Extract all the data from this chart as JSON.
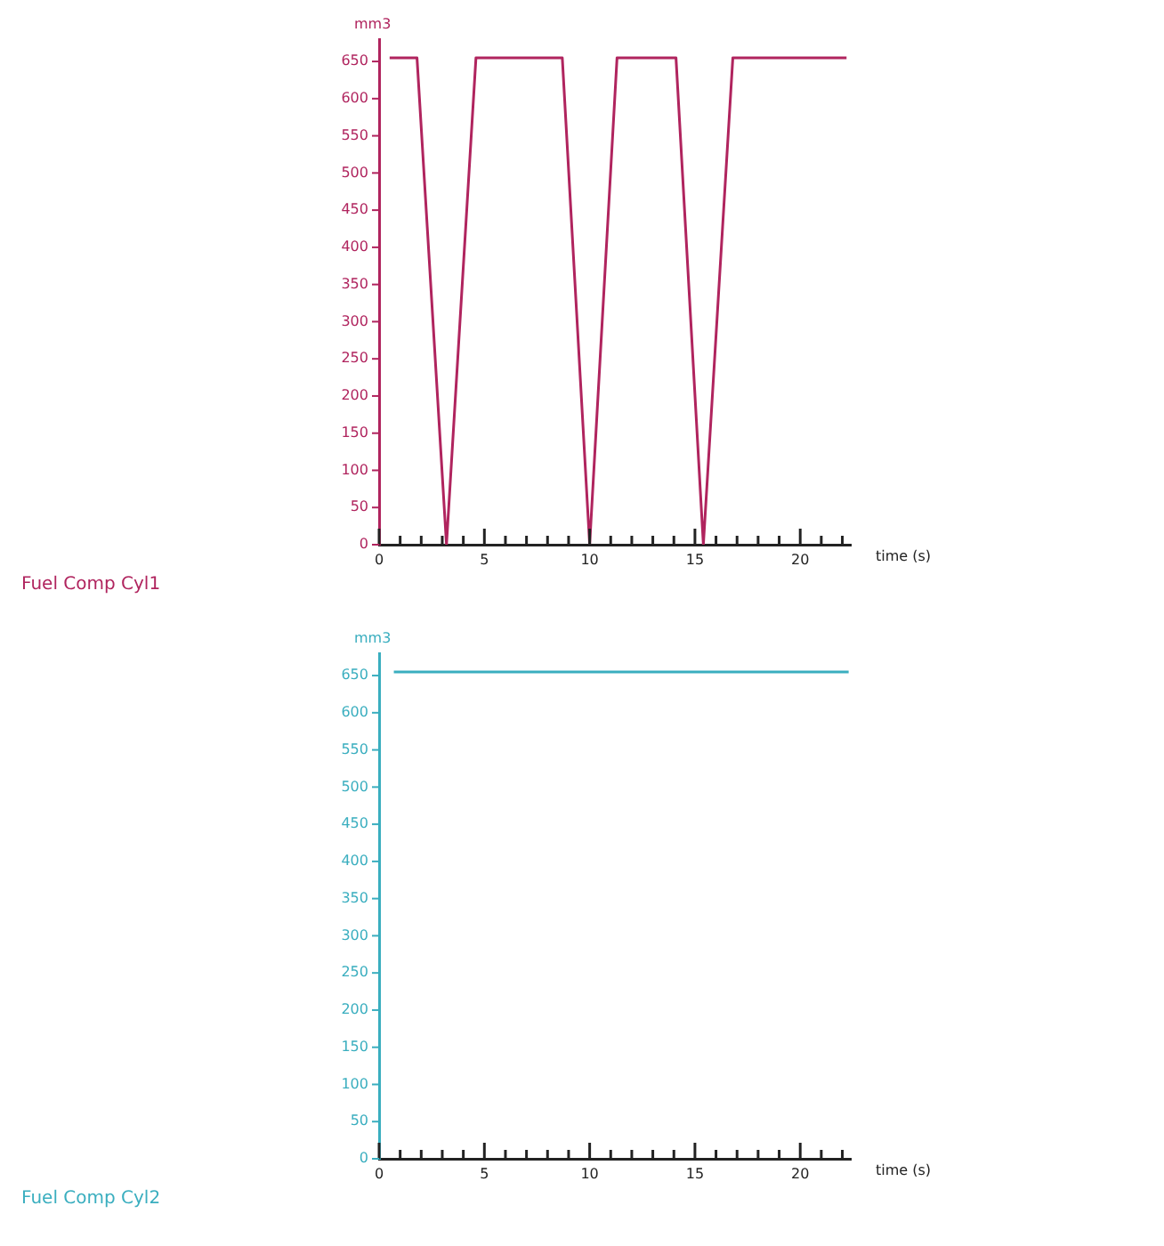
{
  "chart_data": [
    {
      "type": "line",
      "annotations": [
        "Fuel Comp Cyl1"
      ],
      "xlabel": "time (s)",
      "ylabel": "mm3",
      "grid": false,
      "legend": false,
      "marker": "none",
      "line_style": "solid",
      "series": [
        {
          "color": "#b0245e",
          "x": [
            0.5,
            1.8,
            3.2,
            4.6,
            8.7,
            10.0,
            11.3,
            14.1,
            15.4,
            16.8,
            22.2
          ],
          "values": [
            655,
            655,
            0,
            655,
            655,
            0,
            655,
            655,
            0,
            655,
            655
          ]
        }
      ],
      "xlim": [
        0,
        22.4
      ],
      "xticks": [
        0,
        {
          "value": 1,
          "label": null
        },
        {
          "value": 2,
          "label": null
        },
        {
          "value": 3,
          "label": null
        },
        {
          "value": 4,
          "label": null
        },
        5,
        {
          "value": 6,
          "label": null
        },
        {
          "value": 7,
          "label": null
        },
        {
          "value": 8,
          "label": null
        },
        {
          "value": 9,
          "label": null
        },
        10,
        {
          "value": 11,
          "label": null
        },
        {
          "value": 12,
          "label": null
        },
        {
          "value": 13,
          "label": null
        },
        {
          "value": 14,
          "label": null
        },
        15,
        {
          "value": 16,
          "label": null
        },
        {
          "value": 17,
          "label": null
        },
        {
          "value": 18,
          "label": null
        },
        {
          "value": 19,
          "label": null
        },
        20,
        {
          "value": 21,
          "label": null
        },
        {
          "value": 22,
          "label": null
        }
      ],
      "ylim": [
        0,
        680
      ],
      "yticks": [
        0,
        50,
        100,
        150,
        200,
        250,
        300,
        350,
        400,
        450,
        500,
        550,
        600,
        650
      ]
    },
    {
      "type": "line",
      "annotations": [
        "Fuel Comp Cyl2"
      ],
      "xlabel": "time (s)",
      "ylabel": "mm3",
      "grid": false,
      "legend": false,
      "marker": "none",
      "line_style": "solid",
      "series": [
        {
          "color": "#3aaebf",
          "x": [
            0.7,
            22.3
          ],
          "values": [
            655,
            655
          ]
        }
      ],
      "xlim": [
        0,
        22.4
      ],
      "xticks": [
        0,
        {
          "value": 1,
          "label": null
        },
        {
          "value": 2,
          "label": null
        },
        {
          "value": 3,
          "label": null
        },
        {
          "value": 4,
          "label": null
        },
        5,
        {
          "value": 6,
          "label": null
        },
        {
          "value": 7,
          "label": null
        },
        {
          "value": 8,
          "label": null
        },
        {
          "value": 9,
          "label": null
        },
        10,
        {
          "value": 11,
          "label": null
        },
        {
          "value": 12,
          "label": null
        },
        {
          "value": 13,
          "label": null
        },
        {
          "value": 14,
          "label": null
        },
        15,
        {
          "value": 16,
          "label": null
        },
        {
          "value": 17,
          "label": null
        },
        {
          "value": 18,
          "label": null
        },
        {
          "value": 19,
          "label": null
        },
        20,
        {
          "value": 21,
          "label": null
        },
        {
          "value": 22,
          "label": null
        }
      ],
      "ylim": [
        0,
        680
      ],
      "yticks": [
        0,
        50,
        100,
        150,
        200,
        250,
        300,
        350,
        400,
        450,
        500,
        550,
        600,
        650
      ]
    }
  ]
}
